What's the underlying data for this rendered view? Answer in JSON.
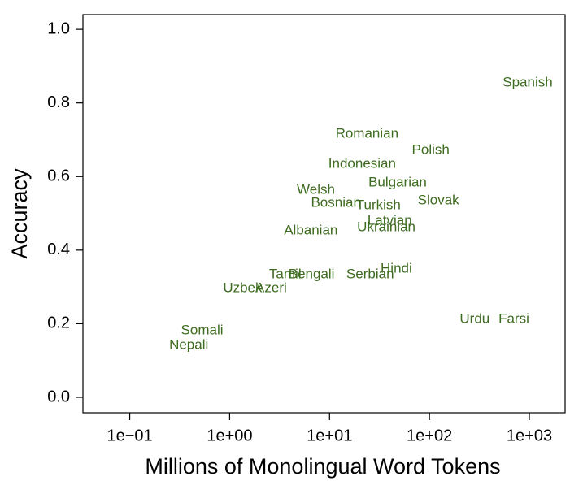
{
  "chart_data": {
    "type": "scatter",
    "x_label": "Millions of Monolingual Word Tokens",
    "y_label": "Accuracy",
    "log_x": true,
    "color": "#3d6b1f",
    "labels": [
      "Spanish",
      "Romanian",
      "Polish",
      "Indonesian",
      "Bulgarian",
      "Welsh",
      "Slovak",
      "Bosnian",
      "Turkish",
      "Latvian",
      "Ukrainian",
      "Albanian",
      "Hindi",
      "Serbian",
      "Bengali",
      "Tamil",
      "Uzbek",
      "Azeri",
      "Urdu",
      "Farsi",
      "Somali",
      "Nepali"
    ],
    "x": [
      963,
      23.7,
      103,
      21.2,
      48,
      7.3,
      123,
      11.6,
      30.8,
      40,
      37,
      6.5,
      46.6,
      25.5,
      6.6,
      3.6,
      1.35,
      2.6,
      284,
      700,
      0.53,
      0.39
    ],
    "values": [
      0.854,
      0.715,
      0.671,
      0.634,
      0.583,
      0.563,
      0.534,
      0.528,
      0.521,
      0.479,
      0.461,
      0.453,
      0.349,
      0.333,
      0.333,
      0.333,
      0.296,
      0.296,
      0.212,
      0.212,
      0.181,
      0.141
    ],
    "xlim": [
      0.034,
      2281
    ],
    "ylim": [
      -0.042,
      1.04
    ],
    "xticks": [
      {
        "value": 0.1,
        "label": "1e−01"
      },
      {
        "value": 1,
        "label": "1e+00"
      },
      {
        "value": 10,
        "label": "1e+01"
      },
      {
        "value": 100,
        "label": "1e+02"
      },
      {
        "value": 1000,
        "label": "1e+03"
      }
    ],
    "yticks": [
      {
        "value": 0,
        "label": "0.0"
      },
      0.2,
      0.4,
      0.6,
      0.8,
      {
        "value": 1,
        "label": "1.0"
      }
    ]
  }
}
